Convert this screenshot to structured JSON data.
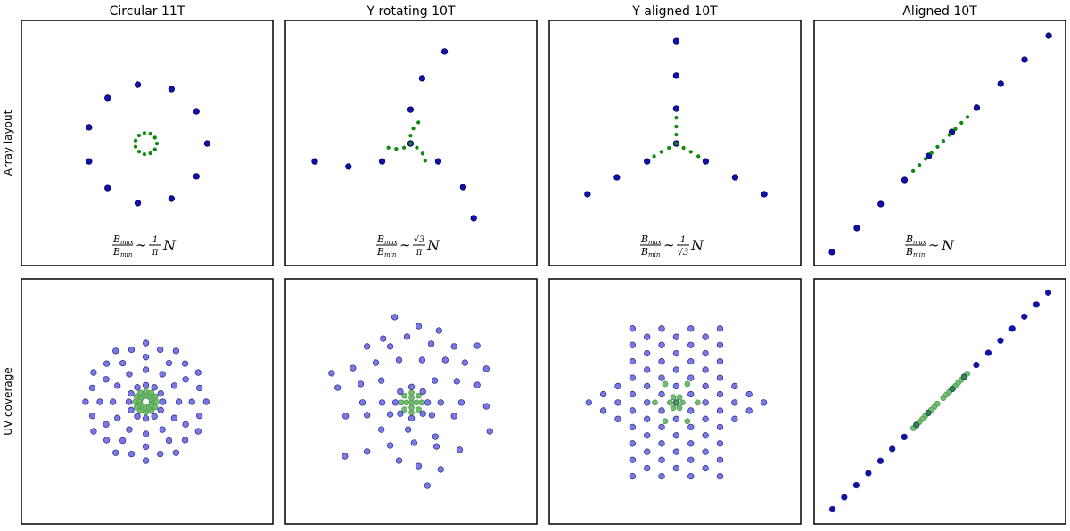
{
  "chart_data": [
    {
      "type": "scatter",
      "title": "Circular 11T",
      "ylabel": "Array layout",
      "xlim": [
        0,
        100
      ],
      "ylim": [
        0,
        100
      ],
      "formula": {
        "num": [
          "B",
          "max"
        ],
        "den": [
          "B",
          "min"
        ],
        "sym": "∼",
        "coef": [
          "1",
          "π"
        ],
        "var": "N"
      },
      "series": [
        {
          "color": "#1010b0",
          "edgecolor": "#000040",
          "x": [
            46.3,
            59.7,
            69.6,
            73.9,
            69.6,
            59.7,
            46.3,
            34.3,
            26.9,
            26.9,
            34.3
          ],
          "values": [
            73.8,
            72.0,
            62.9,
            49.8,
            36.4,
            27.3,
            25.5,
            31.6,
            42.5,
            56.4,
            68.4
          ]
        },
        {
          "color": "#0e8a0e",
          "edgecolor": "#0e8a0e",
          "x": [
            48.9,
            51.3,
            53.1,
            53.9,
            53.1,
            51.3,
            48.9,
            46.8,
            45.4,
            45.4,
            46.8
          ],
          "values": [
            54.1,
            53.8,
            52.2,
            49.8,
            47.4,
            45.8,
            45.4,
            46.5,
            48.5,
            51.0,
            53.1
          ]
        }
      ]
    },
    {
      "type": "scatter",
      "title": "Y rotating 10T",
      "xlim": [
        0,
        100
      ],
      "ylim": [
        0,
        100
      ],
      "formula": {
        "num": [
          "B",
          "max"
        ],
        "den": [
          "B",
          "min"
        ],
        "sym": "∼",
        "coef": [
          "√3",
          "π"
        ],
        "var": "N"
      },
      "series": [
        {
          "color": "#1010b0",
          "edgecolor": "#000040",
          "x": [
            63.3,
            54.4,
            49.8,
            49.8,
            38.5,
            25.1,
            11.7,
            60.8,
            70.7,
            74.9
          ],
          "values": [
            87.3,
            76.4,
            63.6,
            49.8,
            42.5,
            40.4,
            42.5,
            42.5,
            32.0,
            19.3
          ]
        },
        {
          "color": "#0e8a0e",
          "edgecolor": "#0e8a0e",
          "x": [
            52.9,
            50.9,
            49.8,
            49.8,
            47.2,
            44.1,
            41.0,
            52.3,
            54.6,
            55.6
          ],
          "values": [
            58.4,
            55.9,
            53.0,
            49.8,
            48.1,
            47.6,
            48.1,
            48.1,
            45.7,
            42.8
          ]
        }
      ]
    },
    {
      "type": "scatter",
      "title": "Y aligned 10T",
      "xlim": [
        0,
        100
      ],
      "ylim": [
        0,
        100
      ],
      "formula": {
        "num": [
          "B",
          "max"
        ],
        "den": [
          "B",
          "min"
        ],
        "sym": "∼",
        "coef": [
          "1",
          "√3"
        ],
        "var": "N"
      },
      "series": [
        {
          "color": "#1010b0",
          "edgecolor": "#000040",
          "x": [
            50.5,
            50.5,
            50.5,
            50.5,
            38.9,
            26.9,
            15.2,
            62.2,
            73.9,
            85.5
          ],
          "values": [
            91.6,
            77.5,
            64.0,
            49.8,
            42.5,
            36.0,
            29.1,
            42.5,
            36.0,
            29.1
          ]
        },
        {
          "color": "#0e8a0e",
          "edgecolor": "#0e8a0e",
          "x": [
            50.5,
            50.5,
            50.5,
            50.5,
            47.6,
            44.6,
            41.7,
            53.4,
            56.3,
            59.3
          ],
          "values": [
            60.3,
            56.7,
            53.4,
            49.8,
            48.0,
            46.4,
            44.6,
            48.0,
            46.4,
            44.6
          ]
        }
      ]
    },
    {
      "type": "scatter",
      "title": "Aligned 10T",
      "xlim": [
        0,
        100
      ],
      "ylim": [
        0,
        100
      ],
      "formula": {
        "num": [
          "B",
          "max"
        ],
        "den": [
          "B",
          "min"
        ],
        "sym": "∼",
        "var": "N"
      },
      "series": [
        {
          "color": "#1010b0",
          "edgecolor": "#000040",
          "x": [
            7.1,
            17.0,
            26.5,
            36.0,
            45.6,
            54.8,
            64.7,
            74.2,
            83.7,
            93.3
          ],
          "values": [
            5.5,
            15.3,
            25.1,
            34.9,
            44.7,
            54.5,
            64.4,
            74.2,
            84.0,
            93.8
          ]
        },
        {
          "color": "#0e8a0e",
          "edgecolor": "#0e8a0e",
          "x": [
            39.4,
            41.9,
            44.3,
            46.7,
            49.1,
            51.4,
            53.8,
            56.2,
            58.6,
            61.0
          ],
          "values": [
            38.6,
            41.0,
            43.5,
            45.9,
            48.4,
            50.8,
            53.3,
            55.7,
            58.2,
            60.6
          ]
        }
      ]
    },
    {
      "type": "scatter",
      "ylabel": "UV coverage",
      "xlim": [
        0,
        100
      ],
      "ylim": [
        0,
        100
      ],
      "series": [
        {
          "color": "#7878e8",
          "edgecolor": "#2a2a80",
          "x": [
            56.3,
            55.4,
            52.9,
            49.5,
            46.1,
            43.6,
            42.7,
            43.6,
            46.1,
            49.5,
            52.9,
            55.4,
            62.6,
            60.8,
            56.1,
            49.5,
            42.9,
            38.2,
            36.4,
            38.2,
            42.9,
            49.5,
            56.1,
            60.8,
            67.8,
            65.3,
            58.7,
            49.5,
            40.3,
            33.7,
            31.2,
            33.7,
            40.3,
            49.5,
            58.7,
            65.3,
            70.8,
            65.1,
            55.2,
            43.8,
            33.9,
            28.2,
            28.2,
            33.9,
            43.8,
            55.2,
            65.1,
            70.8,
            73.5,
            70.3,
            61.5,
            49.5,
            37.5,
            28.7,
            25.5,
            28.7,
            37.5,
            49.5,
            61.5,
            70.3
          ],
          "values": [
            49.8,
            53.2,
            55.7,
            56.6,
            55.7,
            53.2,
            49.8,
            46.4,
            43.9,
            43.0,
            43.9,
            46.4,
            49.8,
            56.4,
            61.1,
            62.9,
            61.1,
            56.4,
            49.8,
            43.2,
            38.5,
            36.7,
            38.5,
            43.2,
            49.8,
            59.0,
            65.6,
            68.1,
            65.6,
            59.0,
            49.8,
            40.6,
            34.0,
            31.5,
            34.0,
            40.6,
            55.5,
            65.4,
            71.1,
            71.1,
            65.4,
            55.5,
            44.1,
            34.2,
            28.5,
            28.5,
            34.2,
            44.1,
            49.8,
            61.8,
            70.6,
            73.8,
            70.6,
            61.8,
            49.8,
            37.8,
            29.0,
            25.8,
            29.0,
            37.8
          ]
        },
        {
          "color": "#3caa3c",
          "edgecolor": "#1a6a1a",
          "x": [
            53.8,
            53.2,
            51.7,
            49.5,
            47.3,
            45.8,
            45.2,
            45.8,
            47.3,
            49.5,
            51.7,
            53.2,
            51.9,
            51.6,
            50.7,
            49.5,
            48.3,
            47.4,
            47.1,
            47.4,
            48.3,
            49.5,
            50.7,
            51.6
          ],
          "values": [
            49.8,
            52.0,
            53.5,
            54.1,
            53.5,
            52.0,
            49.8,
            47.6,
            46.1,
            45.5,
            46.1,
            47.6,
            49.8,
            51.0,
            51.9,
            52.2,
            51.9,
            51.0,
            49.8,
            48.6,
            47.7,
            47.4,
            47.7,
            48.6
          ]
        }
      ]
    },
    {
      "type": "scatter",
      "xlim": [
        0,
        100
      ],
      "ylim": [
        0,
        100
      ],
      "series": [
        {
          "color": "#7878e8",
          "edgecolor": "#2a2a80",
          "x": [
            43.5,
            53.0,
            61.1,
            38.9,
            48.4,
            32.5,
            41.7,
            58.0,
            67.1,
            76.3,
            18.4,
            26.9,
            36.0,
            45.2,
            54.4,
            63.6,
            71.4,
            79.9,
            20.8,
            30.0,
            38.2,
            59.4,
            68.2,
            76.3,
            30.7,
            38.5,
            61.8,
            70.0,
            79.9,
            24.0,
            32.5,
            41.7,
            58.3,
            67.1,
            81.3,
            23.7,
            32.5,
            41.7,
            51.2,
            60.1,
            69.3,
            38.2,
            48.8,
            59.7,
            45.2,
            53.0,
            61.8,
            56.5,
            56.6,
            54.7,
            50.2,
            45.7,
            43.8,
            45.7,
            50.2,
            54.7
          ],
          "values": [
            84.4,
            80.7,
            78.9,
            75.6,
            76.4,
            72.4,
            72.4,
            73.5,
            72.4,
            72.7,
            61.5,
            63.6,
            65.8,
            66.9,
            66.9,
            66.9,
            65.8,
            63.3,
            55.6,
            57.1,
            58.5,
            58.5,
            58.2,
            56.7,
            49.5,
            49.5,
            49.5,
            49.5,
            48.0,
            44.0,
            44.4,
            44.7,
            44.4,
            44.0,
            37.8,
            27.6,
            29.5,
            32.0,
            33.1,
            31.6,
            30.2,
            38.5,
            38.5,
            35.6,
            25.8,
            23.6,
            22.2,
            15.6,
            49.5,
            54.0,
            55.9,
            54.0,
            49.5,
            45.0,
            43.1,
            45.0
          ]
        },
        {
          "color": "#3caa3c",
          "edgecolor": "#1a6a1a",
          "x": [
            54.2,
            53.0,
            50.2,
            47.4,
            46.2,
            47.4,
            50.2,
            53.0,
            50.2,
            52.2,
            50.2,
            48.2,
            50.2
          ],
          "values": [
            49.5,
            52.3,
            53.5,
            52.3,
            49.5,
            46.7,
            45.5,
            46.7,
            49.5,
            49.5,
            51.5,
            49.5,
            47.5
          ]
        }
      ]
    },
    {
      "type": "scatter",
      "xlim": [
        0,
        100
      ],
      "ylim": [
        0,
        100
      ],
      "series": [
        {
          "color": "#7878e8",
          "edgecolor": "#2a2a80",
          "x": [
            15.7,
            21.5,
            21.5,
            27.3,
            27.3,
            27.3,
            33.1,
            33.1,
            33.1,
            33.1,
            33.1,
            33.1,
            33.1,
            33.1,
            33.1,
            33.1,
            38.9,
            38.9,
            38.9,
            38.9,
            38.9,
            38.9,
            38.9,
            38.9,
            38.9,
            44.7,
            44.7,
            44.7,
            44.7,
            44.7,
            44.7,
            44.7,
            44.7,
            44.7,
            44.7,
            50.5,
            50.5,
            50.5,
            50.5,
            50.5,
            50.5,
            50.5,
            50.5,
            50.5,
            56.3,
            56.3,
            56.3,
            56.3,
            56.3,
            56.3,
            56.3,
            56.3,
            56.3,
            56.3,
            62.1,
            62.1,
            62.1,
            62.1,
            62.1,
            62.1,
            62.1,
            62.1,
            62.1,
            67.9,
            67.9,
            67.9,
            67.9,
            67.9,
            67.9,
            67.9,
            67.9,
            67.9,
            67.9,
            73.7,
            73.7,
            73.7,
            79.5,
            79.5,
            85.3
          ],
          "values": [
            49.5,
            46.2,
            52.9,
            42.8,
            49.5,
            56.2,
            19.4,
            26.1,
            32.8,
            39.5,
            46.2,
            52.9,
            59.6,
            66.3,
            73.0,
            79.7,
            22.7,
            29.4,
            36.1,
            42.8,
            49.5,
            56.2,
            62.9,
            69.6,
            76.3,
            19.4,
            26.1,
            32.8,
            39.5,
            46.2,
            52.9,
            59.6,
            66.3,
            73.0,
            79.7,
            22.7,
            29.4,
            36.1,
            42.8,
            49.5,
            56.2,
            62.9,
            69.6,
            76.3,
            19.4,
            26.1,
            32.8,
            39.5,
            46.2,
            52.9,
            59.6,
            66.3,
            73.0,
            79.7,
            22.7,
            29.4,
            36.1,
            42.8,
            49.5,
            56.2,
            62.9,
            69.6,
            76.3,
            19.4,
            26.1,
            32.8,
            39.5,
            46.2,
            52.9,
            59.6,
            66.3,
            73.0,
            79.7,
            42.8,
            49.5,
            56.2,
            46.2,
            52.9,
            49.5
          ]
        },
        {
          "color": "#3caa3c",
          "edgecolor": "#1a6a1a",
          "x": [
            50.5,
            53.0,
            51.8,
            49.3,
            48.0,
            49.3,
            51.8,
            59.0,
            54.9,
            46.1,
            42.0,
            46.1,
            54.9
          ],
          "values": [
            49.5,
            49.5,
            51.7,
            51.7,
            49.5,
            47.3,
            47.3,
            49.5,
            57.1,
            57.1,
            49.5,
            41.9,
            41.9
          ]
        }
      ]
    },
    {
      "type": "scatter",
      "xlim": [
        0,
        100
      ],
      "ylim": [
        0,
        100
      ],
      "series": [
        {
          "color": "#1010b0",
          "edgecolor": "#2a2a80",
          "x": [
            45.4,
            40.7,
            35.9,
            31.1,
            26.4,
            21.6,
            16.8,
            12.0,
            7.3,
            55.0,
            59.7,
            64.5,
            69.3,
            74.1,
            78.8,
            83.6,
            88.4,
            93.1
          ],
          "values": [
            45.3,
            40.4,
            35.5,
            30.6,
            25.7,
            20.7,
            15.8,
            10.9,
            6.0,
            55.1,
            60.0,
            64.9,
            69.8,
            74.8,
            79.7,
            84.6,
            89.5,
            94.4
          ]
        },
        {
          "color": "#3caa3c",
          "edgecolor": "#1a6a1a",
          "x": [
            49.0,
            47.8,
            46.6,
            45.4,
            44.2,
            43.1,
            41.9,
            40.7,
            39.5,
            51.4,
            52.6,
            53.8,
            55.0,
            56.2,
            57.3,
            58.5,
            59.7,
            60.9
          ],
          "values": [
            49.0,
            47.7,
            46.5,
            45.3,
            44.1,
            42.8,
            41.6,
            40.4,
            39.1,
            51.4,
            52.7,
            53.9,
            55.1,
            56.3,
            57.6,
            58.8,
            60.0,
            61.3
          ]
        }
      ]
    }
  ]
}
